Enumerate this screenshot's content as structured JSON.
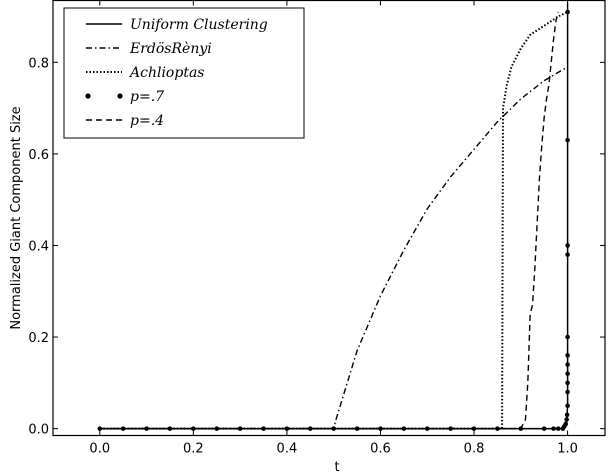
{
  "chart_data": {
    "type": "line",
    "xlabel": "t",
    "ylabel": "Normalized Giant Component Size",
    "xlim": [
      -0.1,
      1.08
    ],
    "ylim": [
      -0.015,
      0.935
    ],
    "xticks": [
      "0.0",
      "0.2",
      "0.4",
      "0.6",
      "0.8",
      "1.0"
    ],
    "yticks": [
      "0.0",
      "0.2",
      "0.4",
      "0.6",
      "0.8"
    ],
    "legend_position": "top-left",
    "grid": false,
    "series": [
      {
        "name": "Uniform Clustering",
        "style": "solid",
        "x": [
          0.0,
          0.99,
          0.995,
          0.998,
          1.0,
          1.0
        ],
        "y": [
          0.0,
          0.0,
          0.002,
          0.01,
          0.05,
          0.93
        ]
      },
      {
        "name": "ErdösRènyi",
        "style": "dashdot",
        "x": [
          0.0,
          0.5,
          0.505,
          0.52,
          0.55,
          0.6,
          0.65,
          0.7,
          0.75,
          0.8,
          0.85,
          0.9,
          0.95,
          1.0
        ],
        "y": [
          0.0,
          0.0,
          0.02,
          0.07,
          0.17,
          0.29,
          0.39,
          0.48,
          0.55,
          0.61,
          0.67,
          0.72,
          0.76,
          0.79
        ]
      },
      {
        "name": "Achlioptas",
        "style": "dotted",
        "x": [
          0.0,
          0.86,
          0.862,
          0.87,
          0.88,
          0.9,
          0.92,
          0.95,
          0.98,
          1.0
        ],
        "y": [
          0.0,
          0.0,
          0.7,
          0.75,
          0.79,
          0.83,
          0.86,
          0.88,
          0.9,
          0.91
        ]
      },
      {
        "name": "p=.7",
        "style": "dots",
        "x": [
          0.0,
          0.05,
          0.1,
          0.15,
          0.2,
          0.25,
          0.3,
          0.35,
          0.4,
          0.45,
          0.5,
          0.55,
          0.6,
          0.65,
          0.7,
          0.75,
          0.8,
          0.85,
          0.9,
          0.95,
          0.97,
          0.98,
          0.99,
          0.993,
          0.996,
          0.998,
          0.999,
          1.0,
          1.0,
          1.0,
          1.0,
          1.0,
          1.0,
          1.0,
          1.0,
          1.0,
          1.0,
          1.0
        ],
        "y": [
          0.0,
          0.0,
          0.0,
          0.0,
          0.0,
          0.0,
          0.0,
          0.0,
          0.0,
          0.0,
          0.0,
          0.0,
          0.0,
          0.0,
          0.0,
          0.0,
          0.0,
          0.0,
          0.0,
          0.0,
          0.0,
          0.0,
          0.0,
          0.005,
          0.01,
          0.02,
          0.03,
          0.05,
          0.08,
          0.1,
          0.12,
          0.14,
          0.16,
          0.2,
          0.38,
          0.4,
          0.63,
          0.91
        ]
      },
      {
        "name": "p=.4",
        "style": "dashed",
        "x": [
          0.0,
          0.9,
          0.91,
          0.915,
          0.92,
          0.925,
          0.93,
          0.935,
          0.94,
          0.945,
          0.95,
          0.955,
          0.96,
          0.965,
          0.97,
          0.975,
          0.98
        ],
        "y": [
          0.0,
          0.0,
          0.02,
          0.1,
          0.25,
          0.27,
          0.35,
          0.45,
          0.55,
          0.62,
          0.68,
          0.72,
          0.75,
          0.8,
          0.85,
          0.89,
          0.91
        ]
      }
    ]
  }
}
